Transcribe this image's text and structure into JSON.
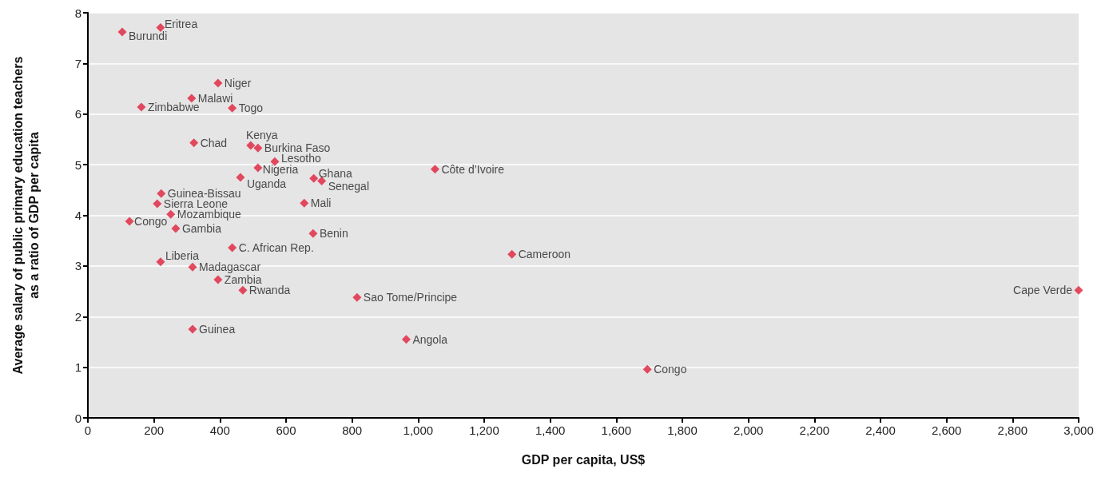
{
  "chart_data": {
    "type": "scatter",
    "xlabel": "GDP per capita, US$",
    "ylabel": "Average salary of public primary education teachers\nas a ratio of GDP per capita",
    "x": [
      104,
      220,
      394,
      314,
      162,
      437,
      321,
      493,
      515,
      566,
      515,
      462,
      684,
      708,
      1051,
      222,
      210,
      655,
      251,
      126,
      266,
      682,
      437,
      1284,
      220,
      317,
      394,
      469,
      815,
      3000,
      317,
      964,
      1694
    ],
    "values": [
      7.62,
      7.71,
      6.61,
      6.31,
      6.14,
      6.12,
      5.43,
      5.38,
      5.33,
      5.06,
      4.94,
      4.75,
      4.73,
      4.68,
      4.91,
      4.43,
      4.23,
      4.24,
      4.02,
      3.88,
      3.74,
      3.64,
      3.36,
      3.23,
      3.08,
      2.98,
      2.73,
      2.52,
      2.38,
      2.52,
      1.75,
      1.55,
      0.96
    ],
    "color": "#e0203c",
    "marker": "diamond",
    "grid": "y",
    "xlim": [
      0,
      3000
    ],
    "xticks": [
      0,
      200,
      400,
      600,
      800,
      {
        "value": 1000,
        "label": "1,000"
      },
      {
        "value": 1200,
        "label": "1,200"
      },
      {
        "value": 1400,
        "label": "1,400"
      },
      {
        "value": 1600,
        "label": "1,600"
      },
      {
        "value": 1800,
        "label": "1,800"
      },
      {
        "value": 2000,
        "label": "2,000"
      },
      {
        "value": 2200,
        "label": "2,200"
      },
      {
        "value": 2400,
        "label": "2,400"
      },
      {
        "value": 2600,
        "label": "2,600"
      },
      {
        "value": 2800,
        "label": "2,800"
      },
      {
        "value": 3000,
        "label": "3,000"
      }
    ],
    "ylim": [
      0,
      8
    ],
    "yticks": [
      0,
      1,
      2,
      3,
      4,
      5,
      6,
      7,
      8
    ],
    "annotations": [
      {
        "text": "Burundi",
        "x": 104,
        "y": 7.62
      },
      {
        "text": "Eritrea",
        "x": 220,
        "y": 7.71
      },
      {
        "text": "Niger",
        "x": 394,
        "y": 6.61
      },
      {
        "text": "Malawi",
        "x": 314,
        "y": 6.31
      },
      {
        "text": "Zimbabwe",
        "x": 162,
        "y": 6.14
      },
      {
        "text": "Togo",
        "x": 437,
        "y": 6.12
      },
      {
        "text": "Chad",
        "x": 321,
        "y": 5.43
      },
      {
        "text": "Kenya",
        "x": 493,
        "y": 5.38
      },
      {
        "text": "Burkina Faso",
        "x": 515,
        "y": 5.33
      },
      {
        "text": "Lesotho",
        "x": 566,
        "y": 5.06
      },
      {
        "text": "Nigeria",
        "x": 515,
        "y": 4.94
      },
      {
        "text": "Uganda",
        "x": 462,
        "y": 4.75
      },
      {
        "text": "Ghana",
        "x": 684,
        "y": 4.73
      },
      {
        "text": "Senegal",
        "x": 708,
        "y": 4.68
      },
      {
        "text": "Côte d’Ivoire",
        "x": 1051,
        "y": 4.91
      },
      {
        "text": "Guinea-Bissau",
        "x": 222,
        "y": 4.43
      },
      {
        "text": "Sierra Leone",
        "x": 210,
        "y": 4.23
      },
      {
        "text": "Mali",
        "x": 655,
        "y": 4.24
      },
      {
        "text": "Mozambique",
        "x": 251,
        "y": 4.02
      },
      {
        "text": "Congo",
        "x": 126,
        "y": 3.88
      },
      {
        "text": "Gambia",
        "x": 266,
        "y": 3.74
      },
      {
        "text": "Benin",
        "x": 682,
        "y": 3.64
      },
      {
        "text": "C. African Rep.",
        "x": 437,
        "y": 3.36
      },
      {
        "text": "Cameroon",
        "x": 1284,
        "y": 3.23
      },
      {
        "text": "Liberia",
        "x": 220,
        "y": 3.08
      },
      {
        "text": "Madagascar",
        "x": 317,
        "y": 2.98
      },
      {
        "text": "Zambia",
        "x": 394,
        "y": 2.73
      },
      {
        "text": "Rwanda",
        "x": 469,
        "y": 2.52
      },
      {
        "text": "Sao Tome/Principe",
        "x": 815,
        "y": 2.38
      },
      {
        "text": "Cape Verde",
        "x": 3000,
        "y": 2.52
      },
      {
        "text": "Guinea",
        "x": 317,
        "y": 1.75
      },
      {
        "text": "Angola",
        "x": 964,
        "y": 1.55
      },
      {
        "text": "Congo",
        "x": 1694,
        "y": 0.96
      }
    ]
  }
}
